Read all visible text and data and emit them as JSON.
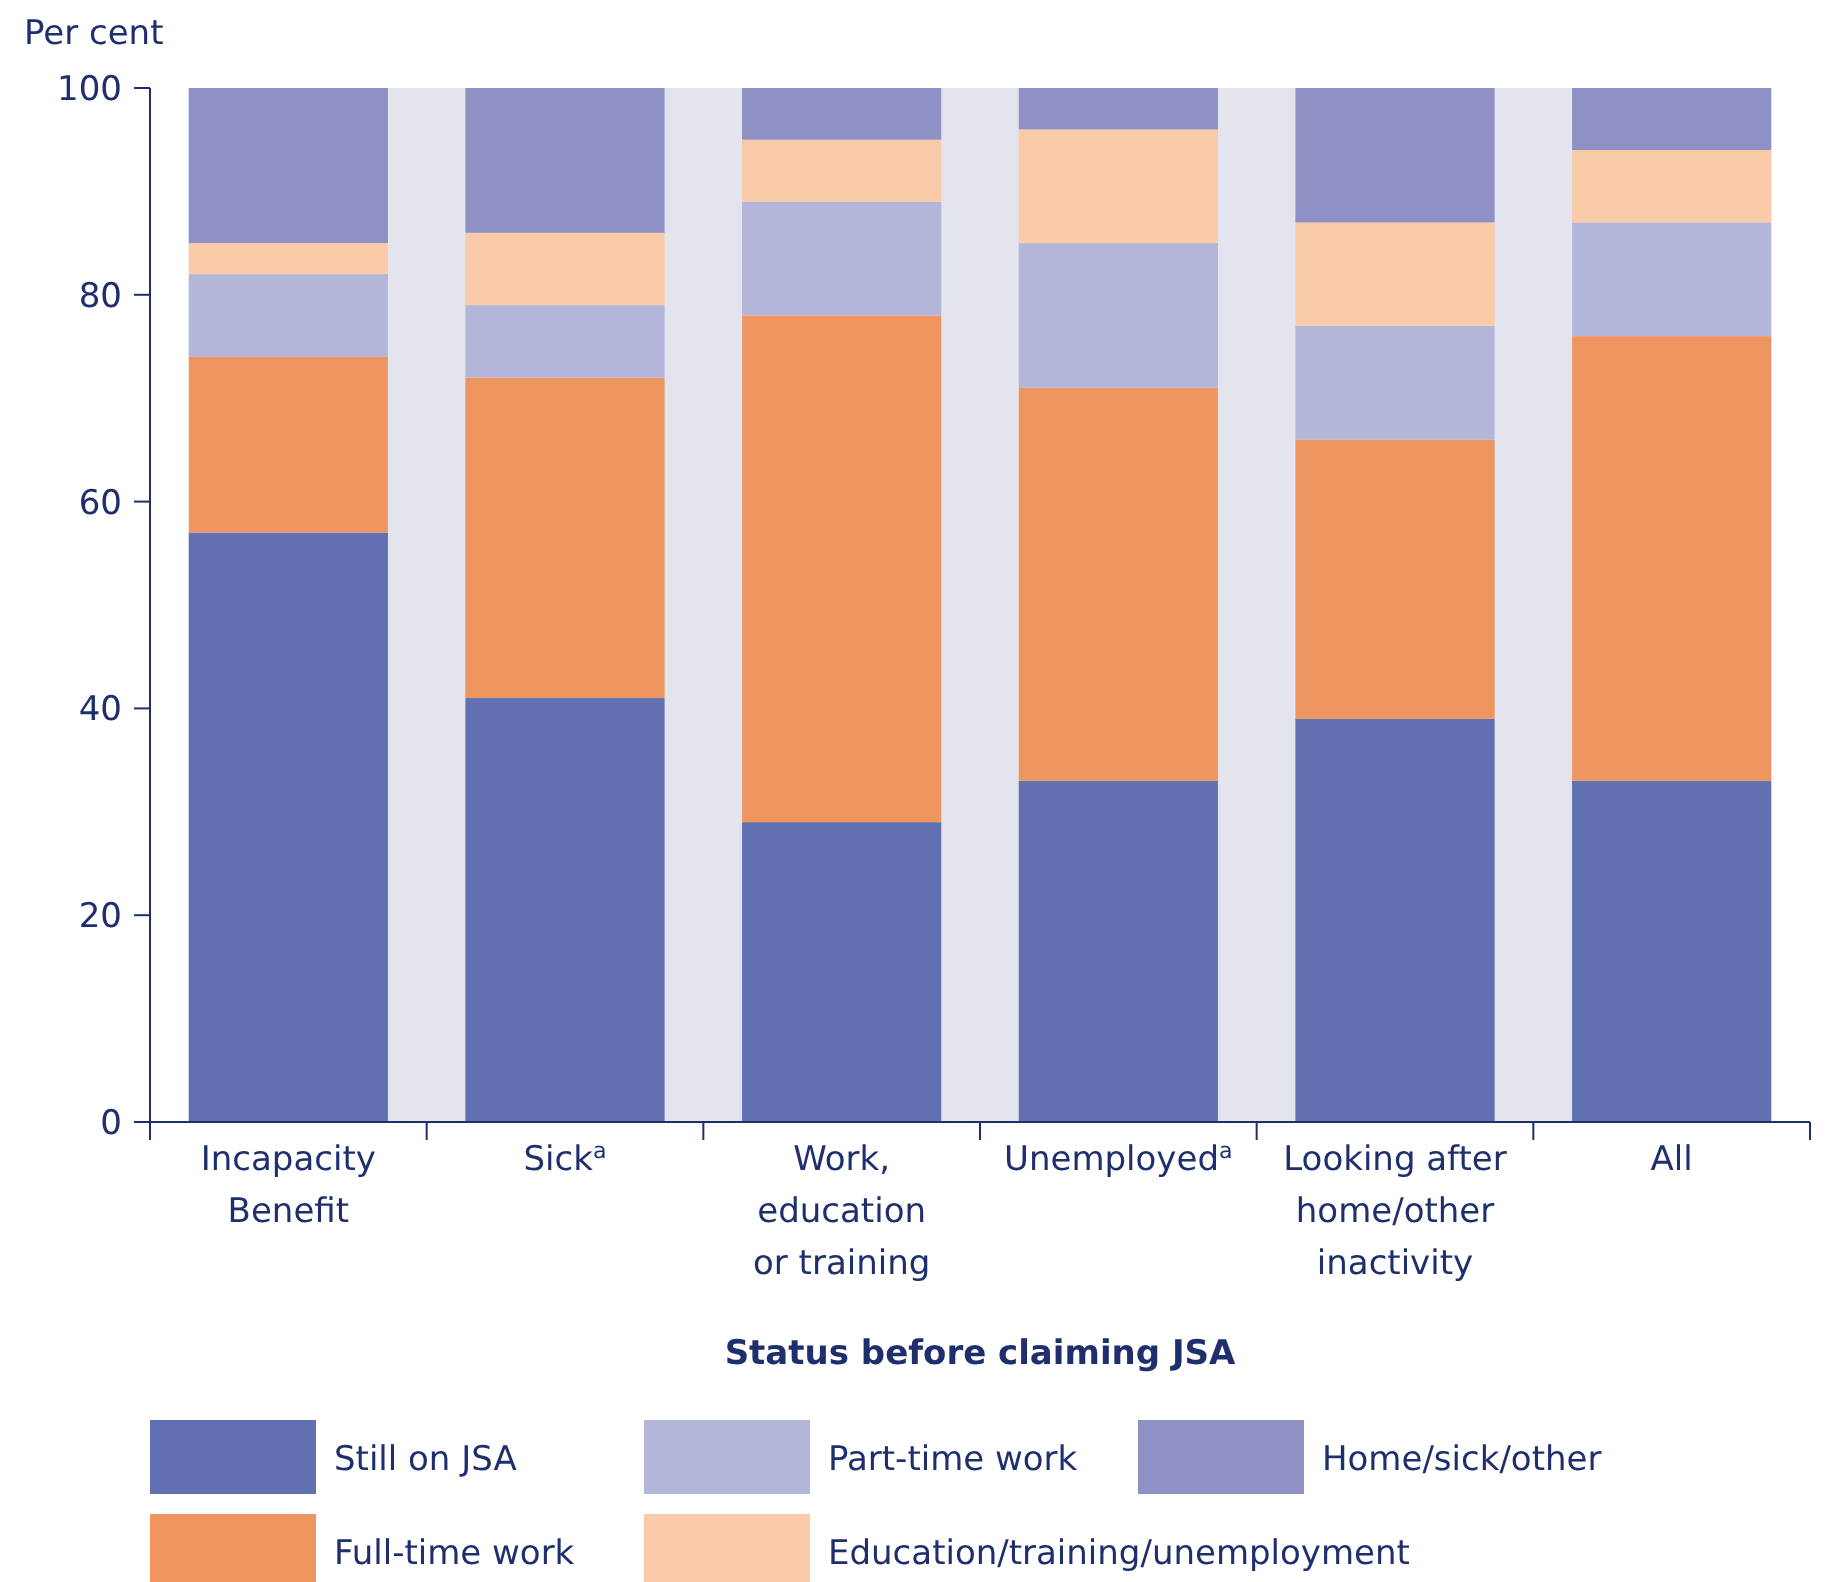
{
  "chart_data": {
    "type": "bar",
    "stacked": true,
    "ylabel": "Per cent",
    "xlabel": "Status before claiming JSA",
    "categories": [
      "Incapacity\nBenefit",
      "Sick$^{a}$",
      "Work,\neducation\nor training",
      "Unemployed$^{a}$",
      "Looking after\nhome/other\ninactivity",
      "All"
    ],
    "ylim": [
      0,
      100
    ],
    "yticks": [
      0,
      20,
      40,
      60,
      80,
      100
    ],
    "legend": "bottom",
    "series": [
      {
        "name": "Still on JSA",
        "color": "#6170b0",
        "values": [
          57,
          41,
          29,
          33,
          39,
          33
        ]
      },
      {
        "name": "Full-time work",
        "color": "#ee9560",
        "values": [
          17,
          31,
          49,
          38,
          27,
          43
        ]
      },
      {
        "name": "Part-time work",
        "color": "#b3b6d9",
        "values": [
          8,
          7,
          11,
          14,
          11,
          11
        ]
      },
      {
        "name": "Education/training/unemployment",
        "color": "#f9cba8",
        "values": [
          3,
          7,
          6,
          11,
          10,
          7
        ]
      },
      {
        "name": "Home/sick/other",
        "color": "#8f90c3",
        "values": [
          15,
          14,
          5,
          4,
          13,
          6
        ]
      }
    ]
  }
}
